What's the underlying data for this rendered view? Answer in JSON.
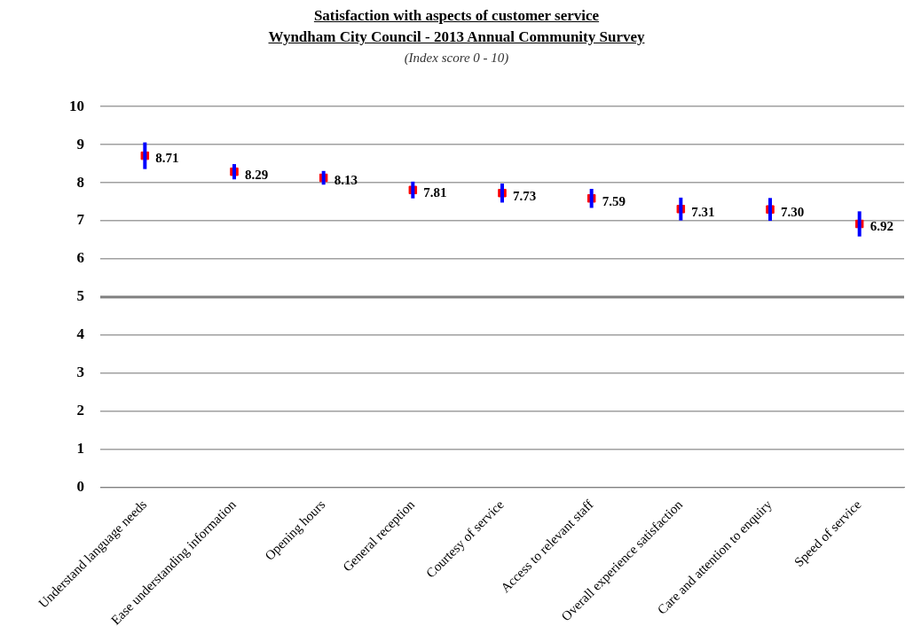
{
  "chart_data": {
    "type": "scatter",
    "title": "Satisfaction with aspects of customer service",
    "subtitle": "Wyndham City Council - 2013 Annual Community Survey",
    "annotations": [
      "(Index score 0 - 10)"
    ],
    "categories": [
      "Understand language needs",
      "Ease understanding information",
      "Opening hours",
      "General reception",
      "Courtesy of service",
      "Access to relevant staff",
      "Overall experience satisfaction",
      "Care and attention to enquiry",
      "Speed of service"
    ],
    "series": [
      {
        "color": "#ff0000",
        "values": [
          8.71,
          8.29,
          8.13,
          7.81,
          7.73,
          7.59,
          7.31,
          7.3,
          6.92
        ],
        "errors": [
          0.35,
          0.2,
          0.18,
          0.22,
          0.25,
          0.25,
          0.3,
          0.3,
          0.33
        ],
        "value_labels": [
          "8.71",
          "8.29",
          "8.13",
          "7.81",
          "7.73",
          "7.59",
          "7.31",
          "7.30",
          "6.92"
        ]
      }
    ],
    "ylim": [
      0,
      10
    ],
    "yticks": [
      0,
      1,
      2,
      3,
      4,
      5,
      6,
      7,
      8,
      9,
      10
    ],
    "grid": "y",
    "legend": false,
    "marker": "square",
    "ref_lines": [
      {
        "axis": "y",
        "value": 5,
        "color": "#808080"
      }
    ]
  }
}
